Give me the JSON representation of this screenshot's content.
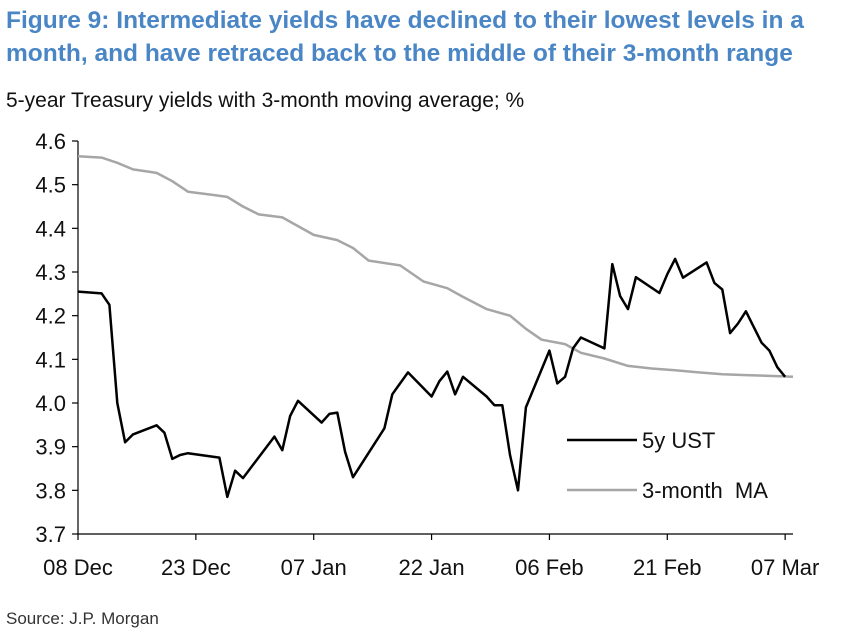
{
  "header": {
    "title": "Figure 9: Intermediate yields have declined to their lowest levels in a month, and have retraced back to the middle of their 3-month range",
    "subtitle": "5-year Treasury yields with 3-month moving average; %"
  },
  "footer": {
    "source": "Source: J.P. Morgan"
  },
  "colors": {
    "title": "#4a86c5",
    "ust": "#000000",
    "ma": "#a6a6a6",
    "axis": "#000000"
  },
  "chart_data": {
    "type": "line",
    "title": "Figure 9: Intermediate yields have declined to their lowest levels in a month, and have retraced back to the middle of their 3-month range",
    "ylabel": "5-year Treasury yields with 3-month moving average; %",
    "xlabel": "",
    "ylim": [
      3.7,
      4.6
    ],
    "y_ticks": [
      "4.6",
      "4.5",
      "4.4",
      "4.3",
      "4.2",
      "4.1",
      "4.0",
      "3.9",
      "3.8",
      "3.7"
    ],
    "x_range": [
      "2023-12-08",
      "2024-03-08"
    ],
    "x_ticks": [
      {
        "date": "2023-12-08",
        "label": "08 Dec"
      },
      {
        "date": "2023-12-23",
        "label": "23 Dec"
      },
      {
        "date": "2024-01-07",
        "label": "07 Jan"
      },
      {
        "date": "2024-01-22",
        "label": "22 Jan"
      },
      {
        "date": "2024-02-06",
        "label": "06 Feb"
      },
      {
        "date": "2024-02-21",
        "label": "21 Feb"
      },
      {
        "date": "2024-03-07",
        "label": "07 Mar"
      }
    ],
    "legend_position": "bottom-right",
    "grid": false,
    "series": [
      {
        "name": "5y UST",
        "color": "#000000",
        "points": [
          [
            "2023-12-08",
            4.255
          ],
          [
            "2023-12-11",
            4.251
          ],
          [
            "2023-12-12",
            4.225
          ],
          [
            "2023-12-13",
            4.0
          ],
          [
            "2023-12-14",
            3.91
          ],
          [
            "2023-12-15",
            3.928
          ],
          [
            "2023-12-18",
            3.949
          ],
          [
            "2023-12-19",
            3.932
          ],
          [
            "2023-12-20",
            3.872
          ],
          [
            "2023-12-21",
            3.881
          ],
          [
            "2023-12-22",
            3.885
          ],
          [
            "2023-12-26",
            3.875
          ],
          [
            "2023-12-27",
            3.785
          ],
          [
            "2023-12-28",
            3.845
          ],
          [
            "2023-12-29",
            3.828
          ],
          [
            "2024-01-02",
            3.923
          ],
          [
            "2024-01-03",
            3.892
          ],
          [
            "2024-01-04",
            3.97
          ],
          [
            "2024-01-05",
            4.005
          ],
          [
            "2024-01-08",
            3.955
          ],
          [
            "2024-01-09",
            3.975
          ],
          [
            "2024-01-10",
            3.978
          ],
          [
            "2024-01-11",
            3.888
          ],
          [
            "2024-01-12",
            3.83
          ],
          [
            "2024-01-16",
            3.942
          ],
          [
            "2024-01-17",
            4.02
          ],
          [
            "2024-01-18",
            4.045
          ],
          [
            "2024-01-19",
            4.07
          ],
          [
            "2024-01-22",
            4.015
          ],
          [
            "2024-01-23",
            4.05
          ],
          [
            "2024-01-24",
            4.072
          ],
          [
            "2024-01-25",
            4.02
          ],
          [
            "2024-01-26",
            4.06
          ],
          [
            "2024-01-29",
            4.015
          ],
          [
            "2024-01-30",
            3.995
          ],
          [
            "2024-01-31",
            3.995
          ],
          [
            "2024-02-01",
            3.88
          ],
          [
            "2024-02-02",
            3.8
          ],
          [
            "2024-02-03",
            3.99
          ],
          [
            "2024-02-06",
            4.12
          ],
          [
            "2024-02-07",
            4.045
          ],
          [
            "2024-02-08",
            4.06
          ],
          [
            "2024-02-09",
            4.125
          ],
          [
            "2024-02-10",
            4.15
          ],
          [
            "2024-02-13",
            4.125
          ],
          [
            "2024-02-14",
            4.318
          ],
          [
            "2024-02-15",
            4.245
          ],
          [
            "2024-02-16",
            4.215
          ],
          [
            "2024-02-17",
            4.288
          ],
          [
            "2024-02-20",
            4.252
          ],
          [
            "2024-02-21",
            4.295
          ],
          [
            "2024-02-22",
            4.33
          ],
          [
            "2024-02-23",
            4.287
          ],
          [
            "2024-02-26",
            4.322
          ],
          [
            "2024-02-27",
            4.275
          ],
          [
            "2024-02-28",
            4.26
          ],
          [
            "2024-02-29",
            4.16
          ],
          [
            "2024-03-01",
            4.182
          ],
          [
            "2024-03-02",
            4.21
          ],
          [
            "2024-03-04",
            4.138
          ],
          [
            "2024-03-05",
            4.12
          ],
          [
            "2024-03-06",
            4.082
          ],
          [
            "2024-03-07",
            4.06
          ]
        ]
      },
      {
        "name": "3-month  MA",
        "color": "#a6a6a6",
        "points": [
          [
            "2023-12-08",
            4.565
          ],
          [
            "2023-12-11",
            4.562
          ],
          [
            "2023-12-13",
            4.55
          ],
          [
            "2023-12-15",
            4.535
          ],
          [
            "2023-12-18",
            4.527
          ],
          [
            "2023-12-20",
            4.508
          ],
          [
            "2023-12-22",
            4.484
          ],
          [
            "2023-12-25",
            4.477
          ],
          [
            "2023-12-27",
            4.472
          ],
          [
            "2023-12-29",
            4.45
          ],
          [
            "2023-12-31",
            4.432
          ],
          [
            "2024-01-03",
            4.425
          ],
          [
            "2024-01-05",
            4.405
          ],
          [
            "2024-01-07",
            4.385
          ],
          [
            "2024-01-10",
            4.373
          ],
          [
            "2024-01-12",
            4.355
          ],
          [
            "2024-01-14",
            4.326
          ],
          [
            "2024-01-18",
            4.315
          ],
          [
            "2024-01-21",
            4.278
          ],
          [
            "2024-01-24",
            4.263
          ],
          [
            "2024-01-26",
            4.243
          ],
          [
            "2024-01-29",
            4.215
          ],
          [
            "2024-02-01",
            4.2
          ],
          [
            "2024-02-03",
            4.17
          ],
          [
            "2024-02-05",
            4.145
          ],
          [
            "2024-02-08",
            4.135
          ],
          [
            "2024-02-10",
            4.115
          ],
          [
            "2024-02-13",
            4.102
          ],
          [
            "2024-02-16",
            4.085
          ],
          [
            "2024-02-19",
            4.079
          ],
          [
            "2024-02-22",
            4.075
          ],
          [
            "2024-02-25",
            4.07
          ],
          [
            "2024-02-28",
            4.066
          ],
          [
            "2024-03-02",
            4.064
          ],
          [
            "2024-03-05",
            4.062
          ],
          [
            "2024-03-08",
            4.06
          ]
        ]
      }
    ]
  }
}
